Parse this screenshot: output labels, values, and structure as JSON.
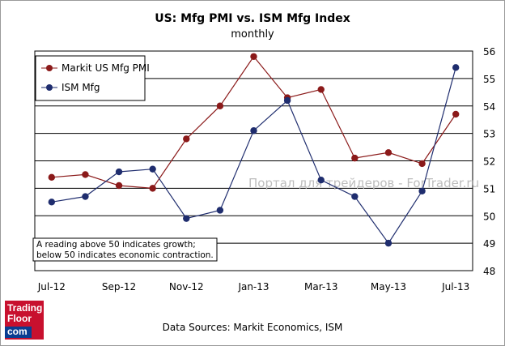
{
  "chart_data": {
    "type": "line",
    "title": "US: Mfg PMI vs. ISM Mfg Index",
    "subtitle": "monthly",
    "x": [
      "Jul-12",
      "Aug-12",
      "Sep-12",
      "Oct-12",
      "Nov-12",
      "Dec-12",
      "Jan-13",
      "Feb-13",
      "Mar-13",
      "Apr-13",
      "May-13",
      "Jun-13",
      "Jul-13"
    ],
    "x_tick_labels": [
      "Jul-12",
      "Sep-12",
      "Nov-12",
      "Jan-13",
      "Mar-13",
      "May-13",
      "Jul-13"
    ],
    "series": [
      {
        "name": "Markit US Mfg PMI",
        "color": "#8b1a1a",
        "values": [
          51.4,
          51.5,
          51.1,
          51.0,
          52.8,
          54.0,
          55.8,
          54.3,
          54.6,
          52.1,
          52.3,
          51.9,
          53.7
        ]
      },
      {
        "name": "ISM Mfg",
        "color": "#1f2d6e",
        "values": [
          50.5,
          50.7,
          51.6,
          51.7,
          49.9,
          50.2,
          53.1,
          54.2,
          51.3,
          50.7,
          49.0,
          50.9,
          55.4
        ]
      }
    ],
    "ylim": [
      48,
      56
    ],
    "y_ticks": [
      "56",
      "55",
      "54",
      "53",
      "52",
      "51",
      "50",
      "49",
      "48"
    ],
    "xlabel": "",
    "ylabel": "",
    "legend_position": "top-left",
    "grid": true,
    "annotation_line1": "A reading above 50 indicates growth;",
    "annotation_line2": "below 50 indicates economic contraction.",
    "source": "Data Sources: Markit Economics, ISM",
    "watermark": "Портал для трейдеров - ForTrader.ru"
  },
  "logo": {
    "line1": "Trading",
    "line2": "Floor",
    "line3": "com"
  },
  "colors": {
    "grid": "#000000",
    "axis": "#000000",
    "pmi": "#8b1a1a",
    "ism": "#1f2d6e"
  }
}
